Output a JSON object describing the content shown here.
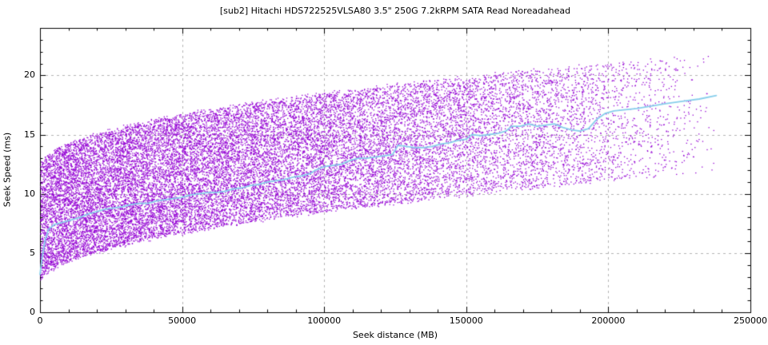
{
  "chart_data": {
    "type": "scatter",
    "title": "[sub2] Hitachi HDS722525VLSA80 3.5\" 250G 7.2kRPM SATA Read Noreadahead",
    "xlabel": "Seek distance (MB)",
    "ylabel": "Seek Speed (ms)",
    "xlim": [
      0,
      250000
    ],
    "ylim": [
      0,
      24
    ],
    "grid": {
      "show": true,
      "color": "#b3b3b3",
      "dash": [
        3,
        4
      ]
    },
    "x_ticks": {
      "values": [
        0,
        50000,
        100000,
        150000,
        200000,
        250000
      ],
      "labels": [
        "0",
        "50000",
        "100000",
        "150000",
        "200000",
        "250000"
      ],
      "minor_step": 10000
    },
    "y_ticks": {
      "values": [
        0,
        5,
        10,
        15,
        20
      ],
      "labels": [
        "0",
        "5",
        "10",
        "15",
        "20"
      ],
      "minor_step": 1
    },
    "colors": {
      "points": "#9400d3",
      "avg_line": "#87ceeb",
      "axis": "#000000",
      "text": "#000000"
    },
    "scatter": {
      "name": "seek samples (distance vs seek time)",
      "approx_points": 22000,
      "seed": 20240501,
      "x_max": 239000,
      "x_distribution": "triangular-decreasing (densest at 0, tapering to zero at x_max)",
      "lower_envelope_ms": {
        "at_0": 2.35,
        "at_xmax": 11.9,
        "shape": "sqrt"
      },
      "band_height_ms": 10.0,
      "y_noise_ms": 0.22
    },
    "avg_line": {
      "name": "running average seek speed",
      "points": [
        [
          0,
          3.2
        ],
        [
          800,
          4.7
        ],
        [
          1800,
          6.1
        ],
        [
          3000,
          7.0
        ],
        [
          5000,
          7.4
        ],
        [
          8000,
          7.6
        ],
        [
          11000,
          7.8
        ],
        [
          14000,
          8.0
        ],
        [
          17000,
          8.3
        ],
        [
          20000,
          8.5
        ],
        [
          23000,
          8.7
        ],
        [
          26000,
          8.8
        ],
        [
          29000,
          8.9
        ],
        [
          32000,
          9.1
        ],
        [
          35000,
          9.2
        ],
        [
          38000,
          9.2
        ],
        [
          41000,
          9.4
        ],
        [
          44000,
          9.5
        ],
        [
          47000,
          9.6
        ],
        [
          50000,
          9.7
        ],
        [
          53000,
          9.9
        ],
        [
          56000,
          10.0
        ],
        [
          59000,
          10.1
        ],
        [
          62000,
          10.1
        ],
        [
          65000,
          10.2
        ],
        [
          68000,
          10.4
        ],
        [
          71000,
          10.5
        ],
        [
          74000,
          10.7
        ],
        [
          77000,
          10.8
        ],
        [
          80000,
          11.0
        ],
        [
          83000,
          11.1
        ],
        [
          86000,
          11.2
        ],
        [
          89000,
          11.4
        ],
        [
          92000,
          11.5
        ],
        [
          95000,
          11.7
        ],
        [
          97000,
          12.0
        ],
        [
          100000,
          12.3
        ],
        [
          103000,
          12.4
        ],
        [
          106000,
          12.5
        ],
        [
          109000,
          12.8
        ],
        [
          112000,
          13.0
        ],
        [
          115000,
          13.0
        ],
        [
          118000,
          13.1
        ],
        [
          121000,
          13.2
        ],
        [
          124000,
          13.3
        ],
        [
          126000,
          14.1
        ],
        [
          129000,
          14.0
        ],
        [
          132000,
          13.9
        ],
        [
          135000,
          13.9
        ],
        [
          138000,
          14.0
        ],
        [
          141000,
          14.2
        ],
        [
          144000,
          14.3
        ],
        [
          147000,
          14.5
        ],
        [
          150000,
          14.6
        ],
        [
          152000,
          15.0
        ],
        [
          155000,
          14.9
        ],
        [
          158000,
          15.0
        ],
        [
          161000,
          15.1
        ],
        [
          164000,
          15.3
        ],
        [
          166000,
          15.7
        ],
        [
          169000,
          15.7
        ],
        [
          172000,
          15.9
        ],
        [
          175000,
          15.7
        ],
        [
          178000,
          15.8
        ],
        [
          181000,
          15.9
        ],
        [
          184000,
          15.6
        ],
        [
          187000,
          15.4
        ],
        [
          190000,
          15.3
        ],
        [
          193000,
          15.5
        ],
        [
          196000,
          16.3
        ],
        [
          199000,
          16.8
        ],
        [
          202000,
          17.0
        ],
        [
          206000,
          17.1
        ],
        [
          210000,
          17.2
        ],
        [
          215000,
          17.4
        ],
        [
          220000,
          17.6
        ],
        [
          226000,
          17.8
        ],
        [
          232000,
          18.0
        ],
        [
          238000,
          18.3
        ]
      ]
    }
  }
}
